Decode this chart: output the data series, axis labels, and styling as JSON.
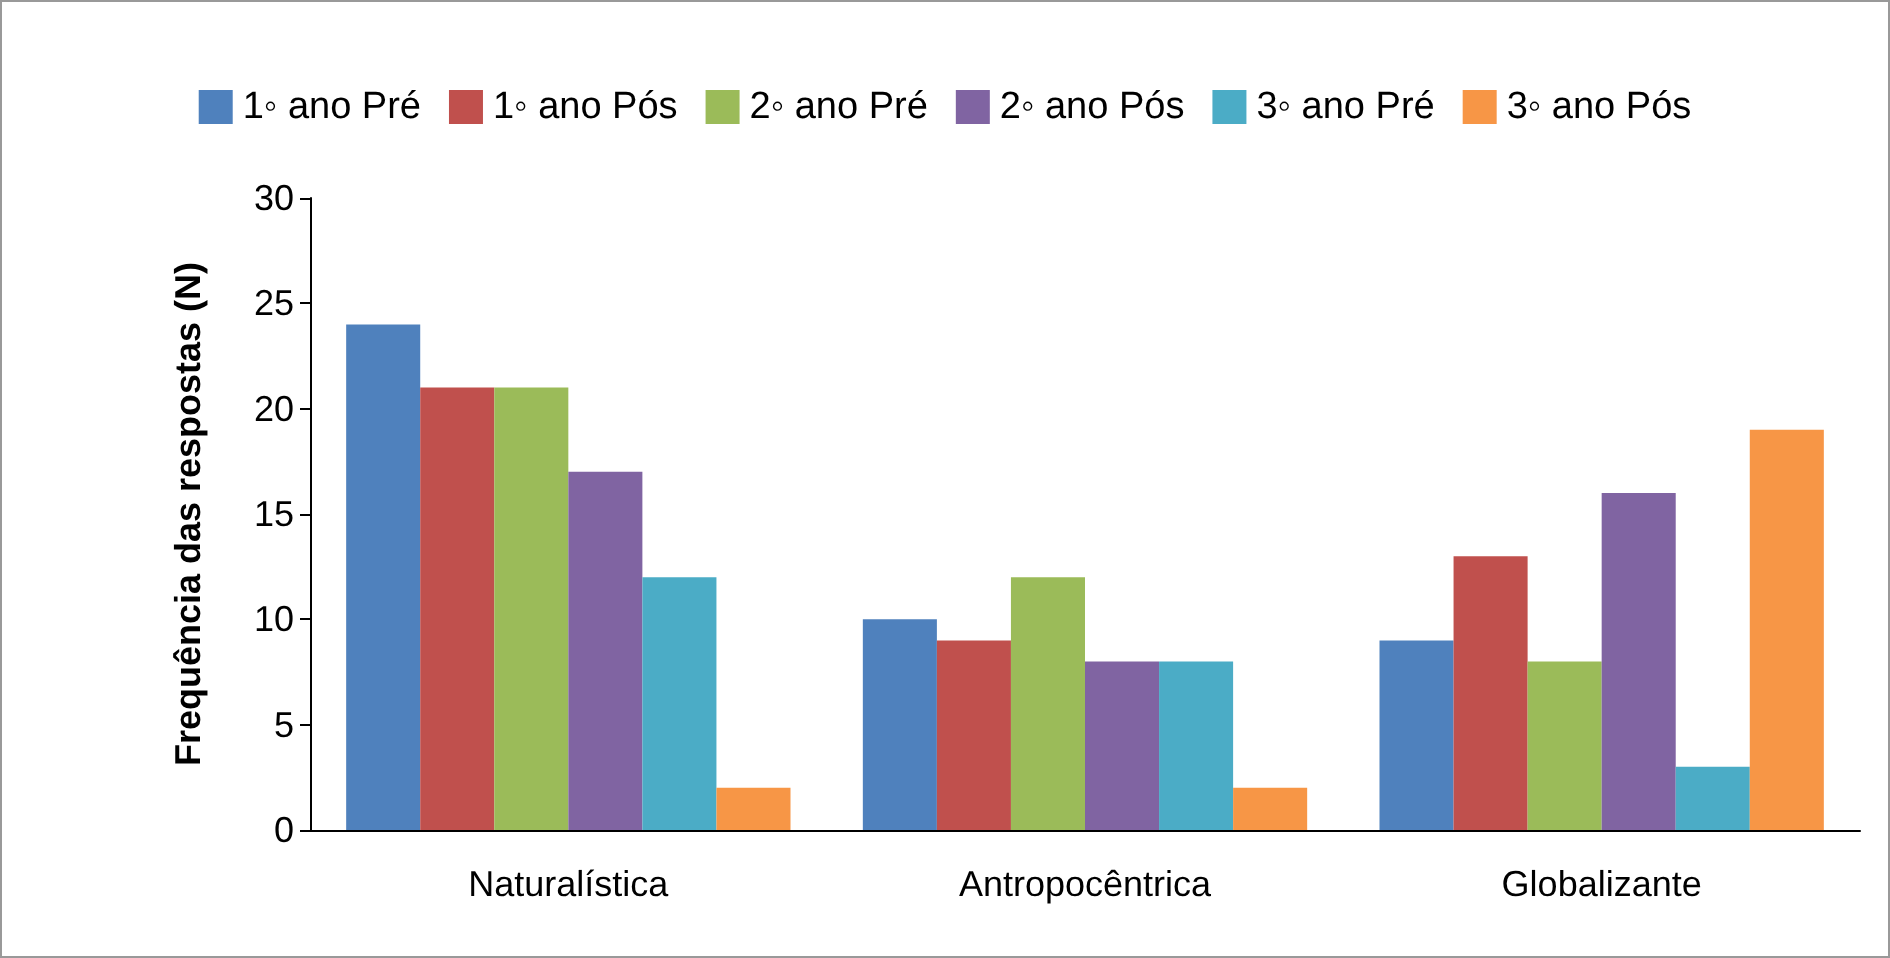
{
  "chart_data": {
    "type": "bar",
    "ylabel": "Frequência das respostas (N)",
    "categories": [
      "Naturalística",
      "Antropocêntrica",
      "Globalizante"
    ],
    "series": [
      {
        "name": "1◦ ano Pré",
        "color": "#4f81bd",
        "values": [
          24,
          10,
          9
        ]
      },
      {
        "name": "1◦ ano Pós",
        "color": "#c0504d",
        "values": [
          21,
          9,
          13
        ]
      },
      {
        "name": "2◦ ano Pré",
        "color": "#9bbb59",
        "values": [
          21,
          12,
          8
        ]
      },
      {
        "name": "2◦ ano Pós",
        "color": "#8064a2",
        "values": [
          17,
          8,
          16
        ]
      },
      {
        "name": "3◦ ano Pré",
        "color": "#4bacc6",
        "values": [
          12,
          8,
          3
        ]
      },
      {
        "name": "3◦ ano Pós",
        "color": "#f79646",
        "values": [
          2,
          2,
          19
        ]
      }
    ],
    "ylim": [
      0,
      30
    ],
    "yticks": [
      0,
      5,
      10,
      15,
      20,
      25,
      30
    ],
    "grid": false,
    "legend": "top"
  }
}
